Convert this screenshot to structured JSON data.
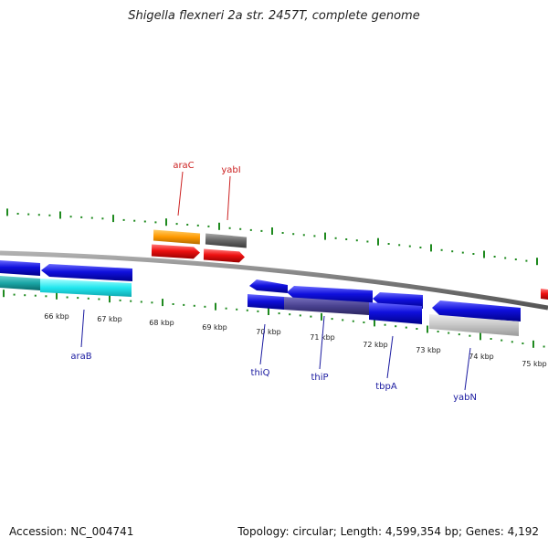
{
  "title": "Shigella flexneri 2a str. 2457T, complete genome",
  "footer": {
    "accession": "Accession: NC_004741",
    "summary": "Topology: circular; Length: 4,599,354 bp; Genes: 4,192"
  },
  "ruler_labels": [
    "66 kbp",
    "67 kbp",
    "68 kbp",
    "69 kbp",
    "70 kbp",
    "71 kbp",
    "72 kbp",
    "73 kbp",
    "74 kbp",
    "75 kbp"
  ],
  "genes_top": [
    {
      "label": "araC",
      "color": "#cc2222"
    },
    {
      "label": "yabI",
      "color": "#cc2222"
    }
  ],
  "genes_bottom": [
    {
      "label": "araB",
      "color": "#1a1aa0"
    },
    {
      "label": "thiQ",
      "color": "#1a1aa0"
    },
    {
      "label": "thiP",
      "color": "#1a1aa0"
    },
    {
      "label": "tbpA",
      "color": "#1a1aa0"
    },
    {
      "label": "yabN",
      "color": "#1a1aa0"
    }
  ],
  "colors": {
    "backbone": "#808080",
    "tick": "#1f8a1f",
    "orange": "#ff9900",
    "dark_grey": "#666666",
    "red": "#ee1111",
    "blue": "#1010dd",
    "cyan": "#22e6ee",
    "teal": "#1aa6a6",
    "purple": "#4a4290",
    "light_grey": "#c6c6c6"
  }
}
